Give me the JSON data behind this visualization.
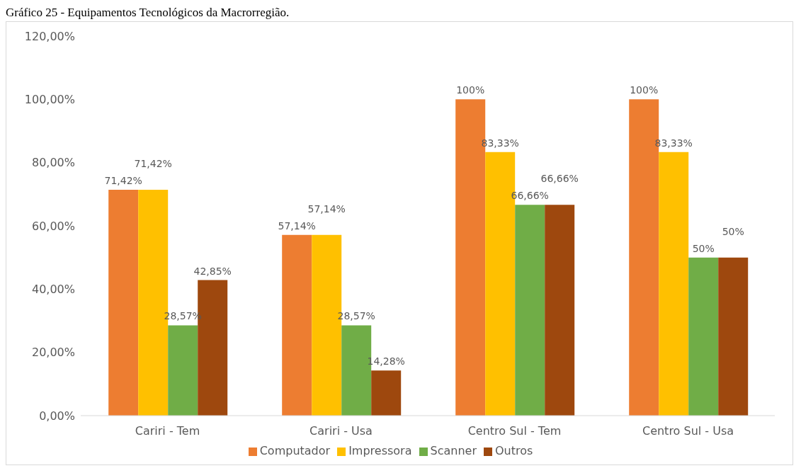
{
  "chart_data": {
    "type": "bar",
    "title": "Gráfico 25 - Equipamentos Tecnológicos da Macrorregião.",
    "categories": [
      "Cariri - Tem",
      "Cariri - Usa",
      "Centro Sul - Tem",
      "Centro Sul - Usa"
    ],
    "series": [
      {
        "name": "Computador",
        "color": "#ed7d31",
        "values": [
          71.42,
          57.14,
          100,
          100
        ],
        "value_labels": [
          "71,42%",
          "57,14%",
          "100%",
          "100%"
        ]
      },
      {
        "name": "Impressora",
        "color": "#ffc000",
        "values": [
          71.42,
          57.14,
          83.33,
          83.33
        ],
        "value_labels": [
          "71,42%",
          "57,14%",
          "83,33%",
          "83,33%"
        ]
      },
      {
        "name": "Scanner",
        "color": "#70ad47",
        "values": [
          28.57,
          28.57,
          66.66,
          50
        ],
        "value_labels": [
          "28,57%",
          "28,57%",
          "66,66%",
          "50%"
        ]
      },
      {
        "name": "Outros",
        "color": "#9e480e",
        "values": [
          42.85,
          14.28,
          66.66,
          50
        ],
        "value_labels": [
          "42,85%",
          "14,28%",
          "66,66%",
          "50%"
        ]
      }
    ],
    "ylim": [
      0,
      120
    ],
    "yticks": [
      {
        "value": 0,
        "label": "0,00%"
      },
      {
        "value": 20,
        "label": "20,00%"
      },
      {
        "value": 40,
        "label": "40,00%"
      },
      {
        "value": 60,
        "label": "60,00%"
      },
      {
        "value": 80,
        "label": "80,00%"
      },
      {
        "value": 100,
        "label": "100,00%"
      },
      {
        "value": 120,
        "label": "120,00%"
      }
    ],
    "grid": false,
    "legend": "bottom"
  }
}
